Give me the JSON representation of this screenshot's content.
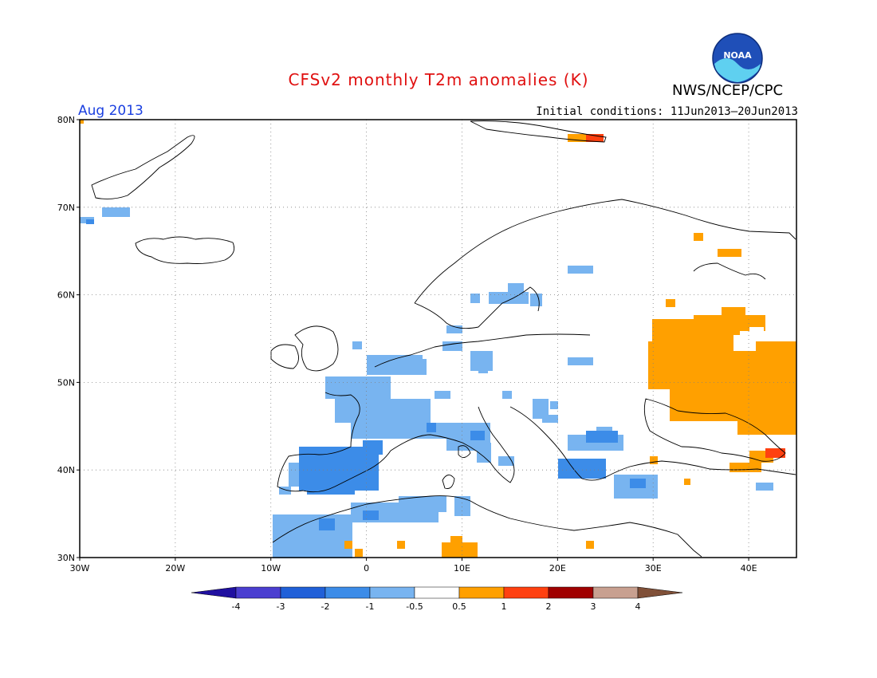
{
  "header": {
    "title": "CFSv2 monthly T2m anomalies (K)",
    "organization": "NWS/NCEP/CPC",
    "valid_month": "Aug 2013",
    "initial_conditions": "Initial conditions: 11Jun2013–20Jun2013",
    "logo_text": "NOAA"
  },
  "map": {
    "lat_range": [
      30,
      80
    ],
    "lon_range": [
      -30,
      45
    ],
    "lat_labels": [
      "80N",
      "70N",
      "60N",
      "50N",
      "40N",
      "30N"
    ],
    "lon_labels": [
      "30W",
      "20W",
      "10W",
      "0",
      "10E",
      "20E",
      "30E",
      "40E"
    ]
  },
  "legend": {
    "labels": [
      "-4",
      "-3",
      "-2",
      "-1",
      "-0.5",
      "0.5",
      "1",
      "2",
      "3",
      "4"
    ],
    "colors": [
      "#2010a0",
      "#4b3ed0",
      "#2060d8",
      "#3c8ce8",
      "#78b4f0",
      "#ffffff",
      "#ffa000",
      "#ff4010",
      "#a00000",
      "#c8a090",
      "#805038"
    ]
  },
  "anomaly_colors": {
    "light_blue": "#78b4f0",
    "mid_blue": "#3c8ce8",
    "orange": "#ffa000",
    "red": "#ff4010"
  }
}
